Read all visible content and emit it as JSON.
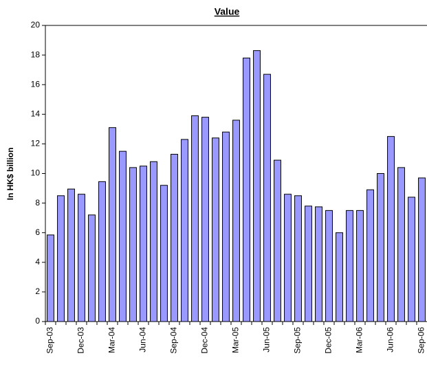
{
  "chart_data": {
    "type": "bar",
    "title": "Value",
    "y_label": "In HK$ billion",
    "categories": [
      "Sep-03",
      null,
      null,
      "Dec-03",
      null,
      null,
      "Mar-04",
      null,
      null,
      "Jun-04",
      null,
      null,
      "Sep-04",
      null,
      null,
      "Dec-04",
      null,
      null,
      "Mar-05",
      null,
      null,
      "Jun-05",
      null,
      null,
      "Sep-05",
      null,
      null,
      "Dec-05",
      null,
      null,
      "Mar-06",
      null,
      null,
      "Jun-06",
      null,
      null,
      "Sep-06"
    ],
    "values": [
      5.85,
      8.5,
      8.95,
      8.6,
      7.2,
      9.45,
      13.1,
      11.5,
      10.4,
      10.5,
      10.8,
      9.2,
      11.3,
      12.3,
      13.9,
      13.8,
      12.4,
      12.8,
      13.6,
      17.8,
      18.3,
      16.7,
      10.9,
      8.6,
      8.5,
      7.8,
      7.75,
      7.5,
      6.0,
      7.5,
      7.5,
      8.9,
      10.0,
      12.5,
      10.4,
      8.4,
      9.7
    ],
    "color": "#9999ff",
    "ylim": [
      0,
      20
    ],
    "yticks": [
      0,
      2,
      4,
      6,
      8,
      10,
      12,
      14,
      16,
      18,
      20
    ]
  }
}
